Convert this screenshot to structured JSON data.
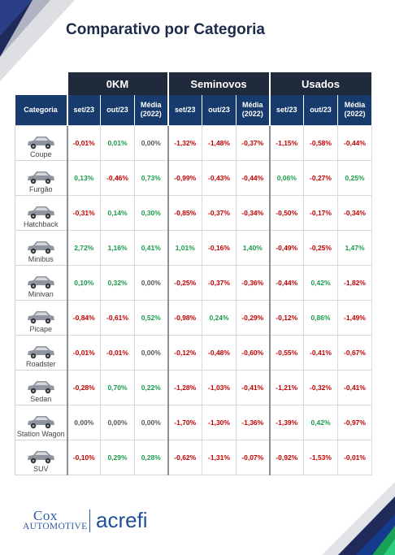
{
  "title": "Comparativo por Categoria",
  "groups": [
    "0KM",
    "Seminovos",
    "Usados"
  ],
  "column_headers": {
    "categoria": "Categoria",
    "sub": [
      "set/23",
      "out/23",
      "Média (2022)"
    ]
  },
  "rows": [
    {
      "category": "Coupe",
      "values": [
        "-0,01%",
        "0,01%",
        "0,00%",
        "-1,32%",
        "-1,48%",
        "-0,37%",
        "-1,15%",
        "-0,58%",
        "-0,44%"
      ]
    },
    {
      "category": "Furgão",
      "values": [
        "0,13%",
        "-0,46%",
        "0,73%",
        "-0,99%",
        "-0,43%",
        "-0,44%",
        "0,06%",
        "-0,27%",
        "0,25%"
      ]
    },
    {
      "category": "Hatchback",
      "values": [
        "-0,31%",
        "0,14%",
        "0,30%",
        "-0,85%",
        "-0,37%",
        "-0,34%",
        "-0,50%",
        "-0,17%",
        "-0,34%"
      ]
    },
    {
      "category": "Minibus",
      "values": [
        "2,72%",
        "1,16%",
        "0,41%",
        "1,01%",
        "-0,16%",
        "1,40%",
        "-0,49%",
        "-0,25%",
        "1,47%"
      ]
    },
    {
      "category": "Minivan",
      "values": [
        "0,10%",
        "0,32%",
        "0,00%",
        "-0,25%",
        "-0,37%",
        "-0,36%",
        "-0,44%",
        "0,42%",
        "-1,82%"
      ]
    },
    {
      "category": "Picape",
      "values": [
        "-0,84%",
        "-0,61%",
        "0,52%",
        "-0,98%",
        "0,24%",
        "-0,29%",
        "-0,12%",
        "0,86%",
        "-1,49%"
      ]
    },
    {
      "category": "Roadster",
      "values": [
        "-0,01%",
        "-0,01%",
        "0,00%",
        "-0,12%",
        "-0,48%",
        "-0,60%",
        "-0,55%",
        "-0,41%",
        "-0,67%"
      ]
    },
    {
      "category": "Sedan",
      "values": [
        "-0,28%",
        "0,70%",
        "0,22%",
        "-1,28%",
        "-1,03%",
        "-0,41%",
        "-1,21%",
        "-0,32%",
        "-0,41%"
      ]
    },
    {
      "category": "Station Wagon",
      "values": [
        "0,00%",
        "0,00%",
        "0,00%",
        "-1,70%",
        "-1,30%",
        "-1,36%",
        "-1,39%",
        "0,42%",
        "-0,97%"
      ]
    },
    {
      "category": "SUV",
      "values": [
        "-0,10%",
        "0,29%",
        "0,28%",
        "-0,62%",
        "-1,31%",
        "-0,07%",
        "-0,92%",
        "-1,53%",
        "-0,01%"
      ]
    }
  ],
  "colors": {
    "negative": "#c00000",
    "positive": "#1a9a4a",
    "neutral": "#555555",
    "group_header": "#1f2a3c",
    "column_header": "#163b6c"
  },
  "logos": {
    "cox_line1": "Cox",
    "cox_line2": "AUTOMOTIVE",
    "acrefi": "acrefi"
  }
}
